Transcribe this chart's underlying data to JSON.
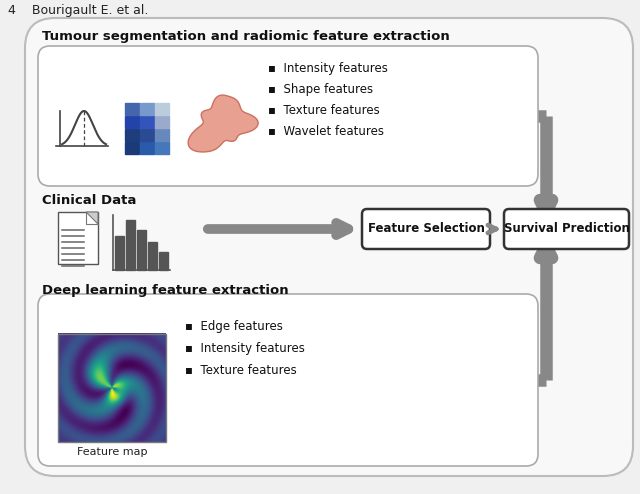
{
  "bg_color": "#f0f0f0",
  "outer_fc": "#f8f8f8",
  "outer_ec": "#bbbbbb",
  "inner_fc": "#ffffff",
  "inner_ec": "#aaaaaa",
  "arrow_color": "#888888",
  "header": "4    Bourigault E. et al.",
  "sec1_title": "Tumour segmentation and radiomic feature extraction",
  "sec1_bullets": [
    "Intensity features",
    "Shape features",
    "Texture features",
    "Wavelet features"
  ],
  "sec2_title": "Clinical Data",
  "sec3_title": "Deep learning feature extraction",
  "sec3_bullets": [
    "Edge features",
    "Intensity features",
    "Texture features"
  ],
  "sec3_caption": "Feature map",
  "lbl_fs": "Feature Selection",
  "lbl_sp": "Survival Prediction",
  "bold_fs": 9.5,
  "body_fs": 8.5,
  "small_fs": 8.0
}
